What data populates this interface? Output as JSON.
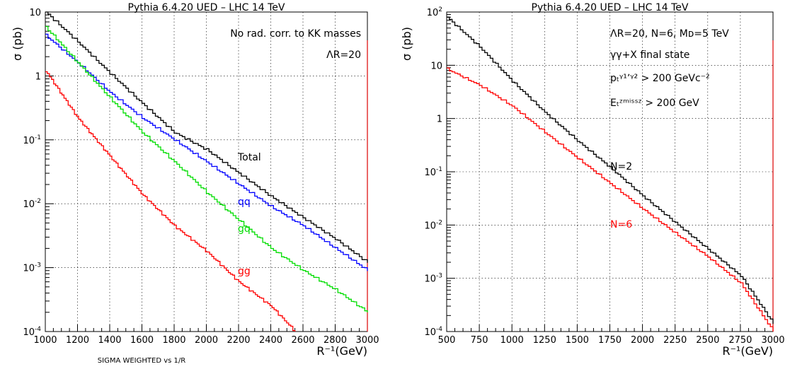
{
  "chart_data": [
    {
      "type": "line",
      "title": "Pythia 6.4.20 UED – LHC 14 TeV",
      "xlabel": "R⁻¹(GeV)",
      "ylabel": "σ (pb)",
      "xlim": [
        1000,
        3000
      ],
      "ylim": [
        0.0001,
        10
      ],
      "log_y": true,
      "grid": true,
      "x_ticks": [
        "1000",
        "1200",
        "1400",
        "1600",
        "1800",
        "2000",
        "2200",
        "2400",
        "2600",
        "2800",
        "3000"
      ],
      "footnote": "SIGMA WEIGHTED vs 1/R",
      "annotations": [
        "No rad. corr. to KK masses",
        "ΛR=20"
      ],
      "series": [
        {
          "name": "Total",
          "color": "#000000",
          "x": [
            1000,
            1200,
            1400,
            1600,
            1800,
            2000,
            2200,
            2400,
            2600,
            2800,
            3000
          ],
          "y": [
            10,
            3.4,
            1.1,
            0.37,
            0.13,
            0.07,
            0.03,
            0.013,
            0.006,
            0.0028,
            0.0012
          ]
        },
        {
          "name": "qq",
          "color": "#0000ff",
          "x": [
            1000,
            1200,
            1400,
            1600,
            1800,
            2000,
            2200,
            2400,
            2600,
            2800,
            3000
          ],
          "y": [
            4.3,
            1.6,
            0.55,
            0.22,
            0.1,
            0.045,
            0.02,
            0.009,
            0.0045,
            0.002,
            0.0009
          ]
        },
        {
          "name": "gq",
          "color": "#00dd00",
          "x": [
            1000,
            1200,
            1400,
            1600,
            1800,
            2000,
            2200,
            2400,
            2600,
            2800,
            3000
          ],
          "y": [
            5.8,
            1.6,
            0.45,
            0.13,
            0.045,
            0.015,
            0.0055,
            0.002,
            0.0009,
            0.00045,
            0.0002
          ]
        },
        {
          "name": "gg",
          "color": "#ff0000",
          "x": [
            1000,
            1200,
            1400,
            1600,
            1800,
            2000,
            2200,
            2400,
            2550
          ],
          "y": [
            1.2,
            0.22,
            0.055,
            0.014,
            0.0045,
            0.0018,
            0.0006,
            0.00025,
            0.0001
          ]
        }
      ]
    },
    {
      "type": "line",
      "title": "Pythia 6.4.20 UED – LHC 14 TeV",
      "xlabel": "R⁻¹(GeV)",
      "ylabel": "σ (pb)",
      "xlim": [
        500,
        3000
      ],
      "ylim": [
        0.0001,
        100
      ],
      "log_y": true,
      "grid": true,
      "x_ticks": [
        "500",
        "750",
        "1000",
        "1250",
        "1500",
        "1750",
        "2000",
        "2250",
        "2500",
        "2750",
        "3000"
      ],
      "annotations": [
        "ΛR=20, N=6, Mᴅ=5 TeV",
        "γγ+X final state",
        "pₜᵞ¹ʼᵞ² > 200 GeVc⁻²",
        "Eₜᶻᵐⁱˢˢᶻ > 200 GeV"
      ],
      "series": [
        {
          "name": "N=2",
          "color": "#000000",
          "x": [
            500,
            750,
            1000,
            1250,
            1500,
            1750,
            2000,
            2250,
            2500,
            2750,
            3000
          ],
          "y": [
            80,
            22,
            5,
            1.3,
            0.38,
            0.12,
            0.035,
            0.011,
            0.0035,
            0.0011,
            0.00014
          ]
        },
        {
          "name": "N=6",
          "color": "#ff0000",
          "x": [
            500,
            750,
            1000,
            1250,
            1500,
            1750,
            2000,
            2250,
            2500,
            2750,
            3000
          ],
          "y": [
            8.5,
            4.2,
            1.7,
            0.55,
            0.18,
            0.06,
            0.02,
            0.007,
            0.0025,
            0.0008,
            0.0001
          ]
        }
      ]
    }
  ]
}
